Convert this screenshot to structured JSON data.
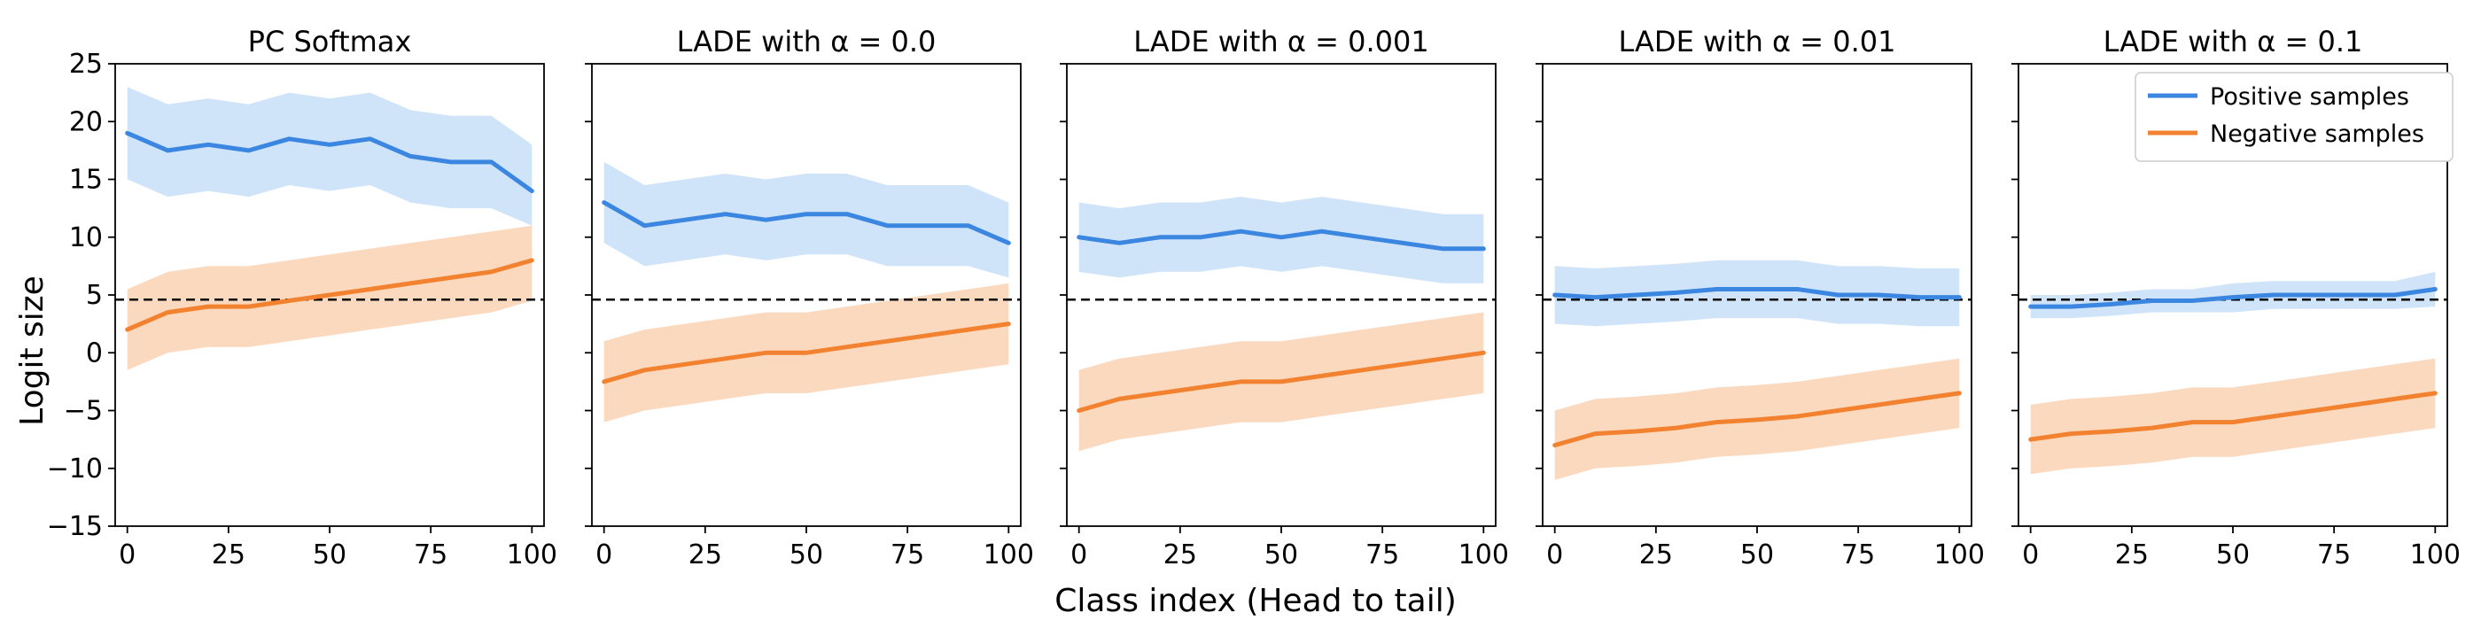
{
  "figure": {
    "xlabel": "Class index (Head to tail)",
    "ylabel": "Logit size"
  },
  "legend": {
    "items": [
      {
        "label": "Positive samples",
        "color": "#3b86e0"
      },
      {
        "label": "Negative samples",
        "color": "#f2822f"
      }
    ],
    "placement": "top-right of last panel"
  },
  "chart_data": [
    {
      "type": "line",
      "title": "PC Softmax",
      "xlim": [
        -3,
        103
      ],
      "ylim": [
        -15,
        25
      ],
      "xticks": [
        0,
        25,
        50,
        75,
        100
      ],
      "xtick_labels": [
        "0",
        "25",
        "50",
        "75",
        "100"
      ],
      "yticks": [
        -15,
        -10,
        -5,
        0,
        5,
        10,
        15,
        20,
        25
      ],
      "ytick_labels": [
        "−15",
        "−10",
        "−5",
        "0",
        "5",
        "10",
        "15",
        "20",
        "25"
      ],
      "reference_line": 4.6,
      "x": [
        0,
        10,
        20,
        30,
        40,
        50,
        60,
        70,
        80,
        90,
        100
      ],
      "series": [
        {
          "name": "Positive samples",
          "color": "#3b86e0",
          "values": [
            19,
            17.5,
            18,
            17.5,
            18.5,
            18,
            18.5,
            17,
            16.5,
            16.5,
            14
          ],
          "lower": [
            15,
            13.5,
            14,
            13.5,
            14.5,
            14,
            14.5,
            13,
            12.5,
            12.5,
            11
          ],
          "upper": [
            23,
            21.5,
            22,
            21.5,
            22.5,
            22,
            22.5,
            21,
            20.5,
            20.5,
            18
          ]
        },
        {
          "name": "Negative samples",
          "color": "#f2822f",
          "values": [
            2,
            3.5,
            4,
            4,
            4.5,
            5,
            5.5,
            6,
            6.5,
            7,
            8
          ],
          "lower": [
            -1.5,
            0,
            0.5,
            0.5,
            1,
            1.5,
            2,
            2.5,
            3,
            3.5,
            4.5
          ],
          "upper": [
            5.5,
            7,
            7.5,
            7.5,
            8,
            8.5,
            9,
            9.5,
            10,
            10.5,
            11
          ]
        }
      ]
    },
    {
      "type": "line",
      "title": "LADE with α = 0.0",
      "xlim": [
        -3,
        103
      ],
      "ylim": [
        -15,
        25
      ],
      "xticks": [
        0,
        25,
        50,
        75,
        100
      ],
      "xtick_labels": [
        "0",
        "25",
        "50",
        "75",
        "100"
      ],
      "reference_line": 4.6,
      "x": [
        0,
        10,
        20,
        30,
        40,
        50,
        60,
        70,
        80,
        90,
        100
      ],
      "series": [
        {
          "name": "Positive samples",
          "color": "#3b86e0",
          "values": [
            13,
            11,
            11.5,
            12,
            11.5,
            12,
            12,
            11,
            11,
            11,
            9.5
          ],
          "lower": [
            9.5,
            7.5,
            8,
            8.5,
            8,
            8.5,
            8.5,
            7.5,
            7.5,
            7.5,
            6.5
          ],
          "upper": [
            16.5,
            14.5,
            15,
            15.5,
            15,
            15.5,
            15.5,
            14.5,
            14.5,
            14.5,
            13
          ]
        },
        {
          "name": "Negative samples",
          "color": "#f2822f",
          "values": [
            -2.5,
            -1.5,
            -1,
            -0.5,
            0,
            0,
            0.5,
            1,
            1.5,
            2,
            2.5
          ],
          "lower": [
            -6,
            -5,
            -4.5,
            -4,
            -3.5,
            -3.5,
            -3,
            -2.5,
            -2,
            -1.5,
            -1
          ],
          "upper": [
            1,
            2,
            2.5,
            3,
            3.5,
            3.5,
            4,
            4.5,
            5,
            5.5,
            6
          ]
        }
      ]
    },
    {
      "type": "line",
      "title": "LADE with α = 0.001",
      "xlim": [
        -3,
        103
      ],
      "ylim": [
        -15,
        25
      ],
      "xticks": [
        0,
        25,
        50,
        75,
        100
      ],
      "xtick_labels": [
        "0",
        "25",
        "50",
        "75",
        "100"
      ],
      "reference_line": 4.6,
      "x": [
        0,
        10,
        20,
        30,
        40,
        50,
        60,
        70,
        80,
        90,
        100
      ],
      "series": [
        {
          "name": "Positive samples",
          "color": "#3b86e0",
          "values": [
            10,
            9.5,
            10,
            10,
            10.5,
            10,
            10.5,
            10,
            9.5,
            9,
            9
          ],
          "lower": [
            7,
            6.5,
            7,
            7,
            7.5,
            7,
            7.5,
            7,
            6.5,
            6,
            6
          ],
          "upper": [
            13,
            12.5,
            13,
            13,
            13.5,
            13,
            13.5,
            13,
            12.5,
            12,
            12
          ]
        },
        {
          "name": "Negative samples",
          "color": "#f2822f",
          "values": [
            -5,
            -4,
            -3.5,
            -3,
            -2.5,
            -2.5,
            -2,
            -1.5,
            -1,
            -0.5,
            0
          ],
          "lower": [
            -8.5,
            -7.5,
            -7,
            -6.5,
            -6,
            -6,
            -5.5,
            -5,
            -4.5,
            -4,
            -3.5
          ],
          "upper": [
            -1.5,
            -0.5,
            0,
            0.5,
            1,
            1,
            1.5,
            2,
            2.5,
            3,
            3.5
          ]
        }
      ]
    },
    {
      "type": "line",
      "title": "LADE with α = 0.01",
      "xlim": [
        -3,
        103
      ],
      "ylim": [
        -15,
        25
      ],
      "xticks": [
        0,
        25,
        50,
        75,
        100
      ],
      "xtick_labels": [
        "0",
        "25",
        "50",
        "75",
        "100"
      ],
      "reference_line": 4.6,
      "x": [
        0,
        10,
        20,
        30,
        40,
        50,
        60,
        70,
        80,
        90,
        100
      ],
      "series": [
        {
          "name": "Positive samples",
          "color": "#3b86e0",
          "values": [
            5,
            4.8,
            5,
            5.2,
            5.5,
            5.5,
            5.5,
            5,
            5,
            4.8,
            4.8
          ],
          "lower": [
            2.5,
            2.3,
            2.5,
            2.7,
            3,
            3,
            3,
            2.5,
            2.5,
            2.3,
            2.3
          ],
          "upper": [
            7.5,
            7.3,
            7.5,
            7.7,
            8,
            8,
            8,
            7.5,
            7.5,
            7.3,
            7.3
          ]
        },
        {
          "name": "Negative samples",
          "color": "#f2822f",
          "values": [
            -8,
            -7,
            -6.8,
            -6.5,
            -6,
            -5.8,
            -5.5,
            -5,
            -4.5,
            -4,
            -3.5
          ],
          "lower": [
            -11,
            -10,
            -9.8,
            -9.5,
            -9,
            -8.8,
            -8.5,
            -8,
            -7.5,
            -7,
            -6.5
          ],
          "upper": [
            -5,
            -4,
            -3.8,
            -3.5,
            -3,
            -2.8,
            -2.5,
            -2,
            -1.5,
            -1,
            -0.5
          ]
        }
      ]
    },
    {
      "type": "line",
      "title": "LADE with α = 0.1",
      "xlim": [
        -3,
        103
      ],
      "ylim": [
        -15,
        25
      ],
      "xticks": [
        0,
        25,
        50,
        75,
        100
      ],
      "xtick_labels": [
        "0",
        "25",
        "50",
        "75",
        "100"
      ],
      "reference_line": 4.6,
      "x": [
        0,
        10,
        20,
        30,
        40,
        50,
        60,
        70,
        80,
        90,
        100
      ],
      "series": [
        {
          "name": "Positive samples",
          "color": "#3b86e0",
          "values": [
            4,
            4,
            4.2,
            4.5,
            4.5,
            4.8,
            5,
            5,
            5,
            5,
            5.5
          ],
          "lower": [
            3,
            3,
            3.2,
            3.5,
            3.5,
            3.5,
            3.8,
            3.8,
            3.8,
            3.8,
            4
          ],
          "upper": [
            5,
            5,
            5.2,
            5.5,
            5.5,
            6,
            6.2,
            6.2,
            6.2,
            6.2,
            7
          ]
        },
        {
          "name": "Negative samples",
          "color": "#f2822f",
          "values": [
            -7.5,
            -7,
            -6.8,
            -6.5,
            -6,
            -6,
            -5.5,
            -5,
            -4.5,
            -4,
            -3.5
          ],
          "lower": [
            -10.5,
            -10,
            -9.8,
            -9.5,
            -9,
            -9,
            -8.5,
            -8,
            -7.5,
            -7,
            -6.5
          ],
          "upper": [
            -4.5,
            -4,
            -3.8,
            -3.5,
            -3,
            -3,
            -2.5,
            -2,
            -1.5,
            -1,
            -0.5
          ]
        }
      ]
    }
  ]
}
